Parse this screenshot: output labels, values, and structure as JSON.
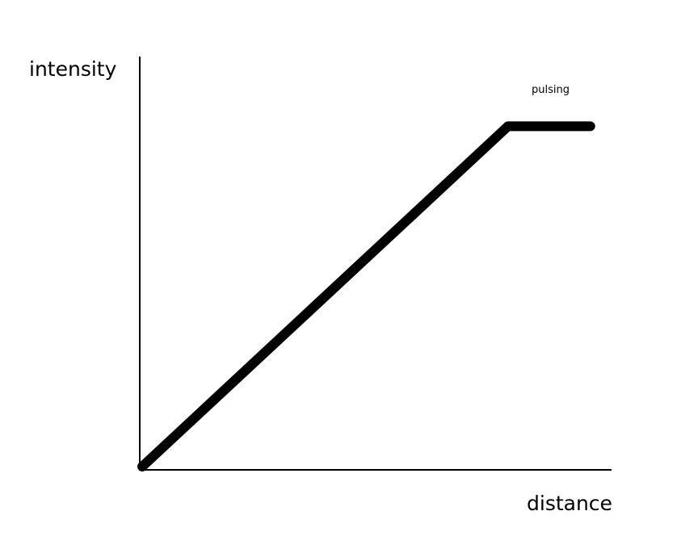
{
  "chart_data": {
    "type": "line",
    "title": "",
    "xlabel": "distance",
    "ylabel": "intensity",
    "grid": false,
    "legend": "none",
    "annotations": [
      {
        "text": "pulsing",
        "x": 0.9,
        "y": 0.93
      }
    ],
    "xlim": [
      0,
      1
    ],
    "ylim": [
      0,
      1
    ],
    "series": [
      {
        "color": "#000000",
        "points": [
          {
            "x": 0.0,
            "y": 0.0
          },
          {
            "x": 0.8,
            "y": 0.83
          },
          {
            "x": 0.98,
            "y": 0.83
          }
        ]
      }
    ]
  }
}
